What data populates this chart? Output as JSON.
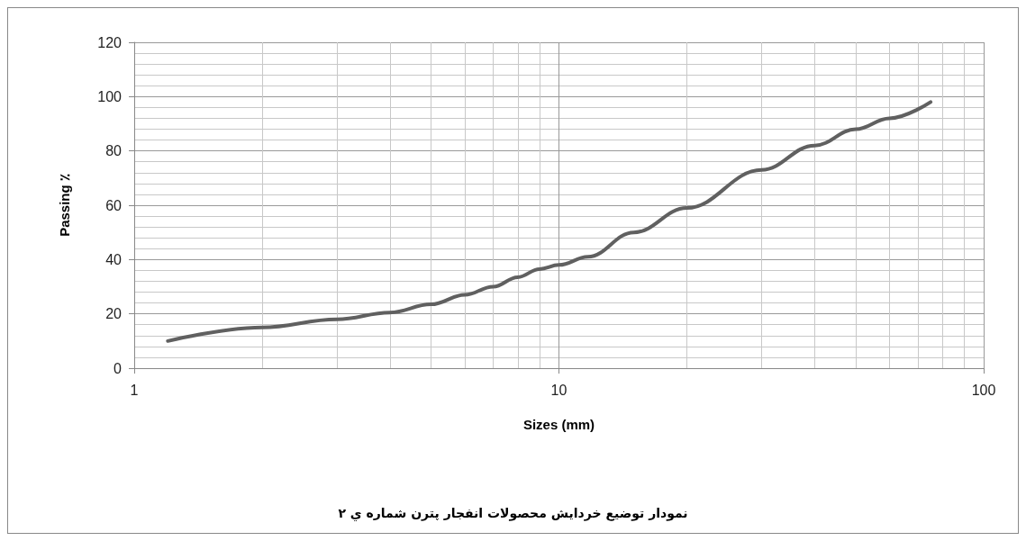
{
  "chart_data": {
    "type": "line",
    "title": "نمودار توضیع خردایش محصولات انفجار پترن شماره ي ۲",
    "xlabel": "Sizes (mm)",
    "ylabel": "Passing ٪",
    "log": "x",
    "grid": true,
    "marker": "none",
    "line_style": "solid",
    "xlim": [
      1,
      100
    ],
    "xticks": [
      1,
      10,
      100
    ],
    "ylim": [
      0,
      120
    ],
    "yticks": [
      0,
      20,
      40,
      60,
      80,
      100,
      120
    ],
    "series": [
      {
        "color": "#606060",
        "x": [
          1.2,
          2,
          3,
          4,
          5,
          6,
          7,
          8,
          9,
          10,
          11.7,
          15,
          20,
          30,
          40,
          50,
          60,
          75
        ],
        "values": [
          10,
          15,
          18,
          20.5,
          23.5,
          27,
          30,
          33.5,
          36.5,
          38,
          41,
          50,
          59,
          73,
          82,
          88,
          92,
          98
        ]
      }
    ]
  }
}
